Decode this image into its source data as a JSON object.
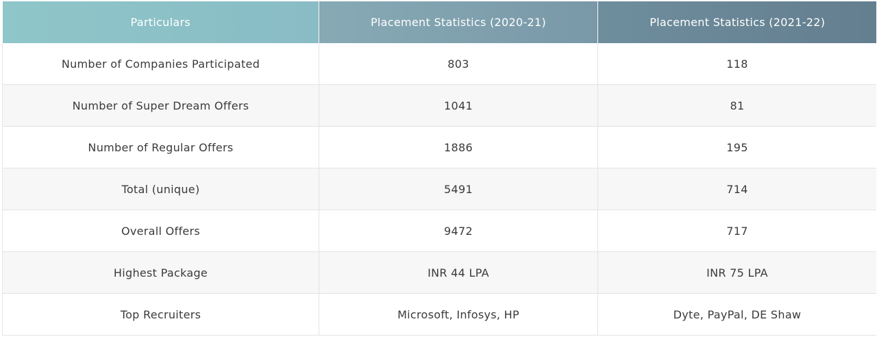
{
  "table": {
    "headers": [
      "Particulars",
      "Placement Statistics (2020-21)",
      "Placement Statistics (2021-22)"
    ],
    "rows": [
      [
        "Number of Companies Participated",
        "803",
        "118"
      ],
      [
        "Number of Super Dream Offers",
        "1041",
        "81"
      ],
      [
        "Number of Regular Offers",
        "1886",
        "195"
      ],
      [
        "Total (unique)",
        "5491",
        "714"
      ],
      [
        "Overall Offers",
        "9472",
        "717"
      ],
      [
        "Highest Package",
        "INR 44 LPA",
        "INR 75 LPA"
      ],
      [
        "Top Recruiters",
        "Microsoft, Infosys, HP",
        "Dyte, PayPal, DE Shaw"
      ]
    ]
  }
}
